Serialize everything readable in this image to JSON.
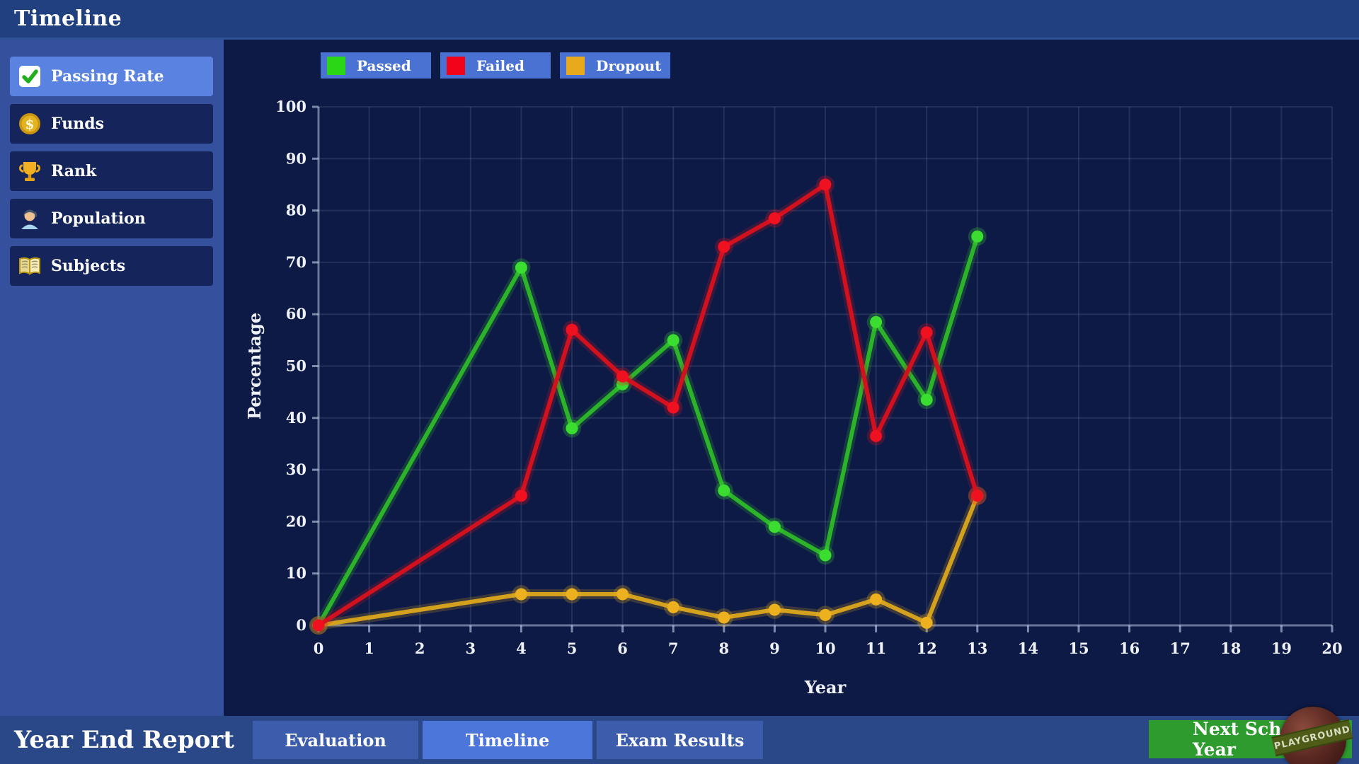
{
  "header": {
    "title": "Timeline"
  },
  "sidebar": {
    "items": [
      {
        "label": "Passing Rate",
        "icon": "check-icon",
        "selected": true
      },
      {
        "label": "Funds",
        "icon": "coin-icon",
        "selected": false
      },
      {
        "label": "Rank",
        "icon": "trophy-icon",
        "selected": false
      },
      {
        "label": "Population",
        "icon": "person-icon",
        "selected": false
      },
      {
        "label": "Subjects",
        "icon": "book-icon",
        "selected": false
      }
    ]
  },
  "chart_data": {
    "type": "line",
    "title": "",
    "xlabel": "Year",
    "ylabel": "Percentage",
    "xlim": [
      0,
      20
    ],
    "ylim": [
      0,
      100
    ],
    "xtick_step": 1,
    "ytick_step": 10,
    "grid": true,
    "legend_position": "top",
    "x": [
      0,
      4,
      5,
      6,
      7,
      8,
      9,
      10,
      11,
      12,
      13
    ],
    "series": [
      {
        "name": "Passed",
        "color": "#2cb32a",
        "dot_color": "#3bdd31",
        "swatch": "#2bd616",
        "values": [
          0,
          69,
          38,
          46.5,
          55,
          26,
          19,
          13.5,
          58.5,
          43.5,
          75
        ]
      },
      {
        "name": "Failed",
        "color": "#d2111e",
        "dot_color": "#ef1120",
        "swatch": "#f2031a",
        "values": [
          0,
          25,
          57,
          48,
          42,
          73,
          78.5,
          85,
          36.5,
          56.5,
          25
        ]
      },
      {
        "name": "Dropout",
        "color": "#d4a11e",
        "dot_color": "#edb01f",
        "swatch": "#e9a91c",
        "values": [
          0,
          6,
          6,
          6,
          3.5,
          1.5,
          3,
          2,
          5,
          0.5,
          25
        ]
      }
    ],
    "draw_order": [
      2,
      0,
      1
    ]
  },
  "footer": {
    "title": "Year End Report",
    "tabs": [
      {
        "label": "Evaluation",
        "selected": false
      },
      {
        "label": "Timeline",
        "selected": true
      },
      {
        "label": "Exam Results",
        "selected": false
      }
    ],
    "next_button_label": "Next School Year"
  },
  "logo": {
    "text": "PLAYGROUND"
  },
  "colors": {
    "header_bg": "#21407f",
    "sidebar_bg": "#35509c",
    "sidebar_item_bg": "#15255c",
    "sidebar_selected_bg": "#5a82e0",
    "chart_bg": "#0d1a45",
    "legend_chip_bg": "#4a72d2",
    "footer_bg": "#2a4787",
    "tab_bg": "#3c5dab",
    "tab_selected_bg": "#4d76da",
    "next_button_bg": "#2e9b2e"
  }
}
